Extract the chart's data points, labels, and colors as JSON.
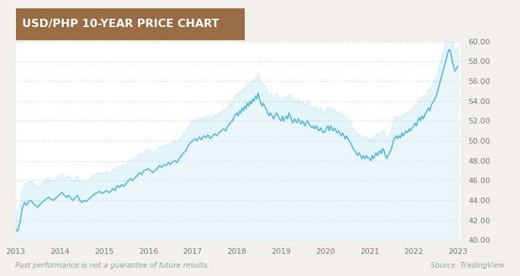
{
  "title": "USD/PHP 10-YEAR PRICE CHART",
  "title_bg_color": "#9b6b44",
  "title_text_color": "#ffffff",
  "fig_bg_color": "#f2f0ed",
  "plot_bg_color": "#ffffff",
  "line_color": "#4db8e8",
  "fill_color": "#c8e8f5",
  "grid_color": "#d0ccc8",
  "tick_color": "#777777",
  "footnote_left": "Past performance is not a guarantee of future results",
  "footnote_right": "Source: TradingView",
  "footnote_color": "#999999",
  "ylim": [
    40.0,
    60.0
  ],
  "yticks": [
    40.0,
    42.0,
    44.0,
    46.0,
    48.0,
    50.0,
    52.0,
    54.0,
    56.0,
    58.0,
    60.0
  ],
  "xtick_labels": [
    "2013",
    "2014",
    "2015",
    "2016",
    "2017",
    "2018",
    "2019",
    "2020",
    "2021",
    "2022",
    "2023"
  ],
  "data": [
    [
      2013.0,
      41.2
    ],
    [
      2013.02,
      41.0
    ],
    [
      2013.05,
      40.9
    ],
    [
      2013.08,
      41.5
    ],
    [
      2013.1,
      41.8
    ],
    [
      2013.15,
      43.2
    ],
    [
      2013.2,
      43.8
    ],
    [
      2013.25,
      43.5
    ],
    [
      2013.3,
      43.9
    ],
    [
      2013.35,
      44.0
    ],
    [
      2013.4,
      43.7
    ],
    [
      2013.45,
      43.5
    ],
    [
      2013.5,
      43.3
    ],
    [
      2013.55,
      43.6
    ],
    [
      2013.6,
      43.8
    ],
    [
      2013.65,
      44.0
    ],
    [
      2013.7,
      44.2
    ],
    [
      2013.75,
      44.3
    ],
    [
      2013.8,
      44.1
    ],
    [
      2013.85,
      44.0
    ],
    [
      2013.9,
      44.2
    ],
    [
      2013.95,
      44.4
    ],
    [
      2014.0,
      44.6
    ],
    [
      2014.05,
      44.8
    ],
    [
      2014.1,
      44.5
    ],
    [
      2014.15,
      44.3
    ],
    [
      2014.2,
      44.5
    ],
    [
      2014.25,
      44.2
    ],
    [
      2014.3,
      44.0
    ],
    [
      2014.35,
      44.3
    ],
    [
      2014.4,
      44.5
    ],
    [
      2014.45,
      44.0
    ],
    [
      2014.5,
      43.8
    ],
    [
      2014.55,
      44.0
    ],
    [
      2014.6,
      43.9
    ],
    [
      2014.65,
      44.1
    ],
    [
      2014.7,
      44.3
    ],
    [
      2014.75,
      44.5
    ],
    [
      2014.8,
      44.7
    ],
    [
      2014.85,
      44.8
    ],
    [
      2014.9,
      44.9
    ],
    [
      2014.95,
      44.7
    ],
    [
      2015.0,
      44.8
    ],
    [
      2015.05,
      45.0
    ],
    [
      2015.1,
      44.8
    ],
    [
      2015.15,
      44.9
    ],
    [
      2015.2,
      45.2
    ],
    [
      2015.25,
      45.0
    ],
    [
      2015.3,
      45.5
    ],
    [
      2015.35,
      45.3
    ],
    [
      2015.4,
      45.6
    ],
    [
      2015.45,
      45.4
    ],
    [
      2015.5,
      45.7
    ],
    [
      2015.55,
      46.0
    ],
    [
      2015.6,
      46.2
    ],
    [
      2015.65,
      46.0
    ],
    [
      2015.7,
      46.3
    ],
    [
      2015.75,
      46.5
    ],
    [
      2015.8,
      46.8
    ],
    [
      2015.85,
      46.6
    ],
    [
      2015.9,
      47.0
    ],
    [
      2015.95,
      47.1
    ],
    [
      2016.0,
      47.2
    ],
    [
      2016.05,
      47.0
    ],
    [
      2016.1,
      46.8
    ],
    [
      2016.15,
      47.0
    ],
    [
      2016.2,
      47.2
    ],
    [
      2016.25,
      47.5
    ],
    [
      2016.3,
      47.3
    ],
    [
      2016.35,
      47.6
    ],
    [
      2016.4,
      47.5
    ],
    [
      2016.45,
      47.8
    ],
    [
      2016.5,
      47.6
    ],
    [
      2016.55,
      47.9
    ],
    [
      2016.6,
      48.0
    ],
    [
      2016.65,
      47.8
    ],
    [
      2016.7,
      48.2
    ],
    [
      2016.75,
      48.5
    ],
    [
      2016.8,
      48.8
    ],
    [
      2016.85,
      49.0
    ],
    [
      2016.9,
      49.5
    ],
    [
      2016.95,
      49.8
    ],
    [
      2017.0,
      50.0
    ],
    [
      2017.05,
      50.2
    ],
    [
      2017.1,
      50.0
    ],
    [
      2017.15,
      50.4
    ],
    [
      2017.2,
      50.1
    ],
    [
      2017.25,
      50.5
    ],
    [
      2017.3,
      50.3
    ],
    [
      2017.35,
      50.6
    ],
    [
      2017.4,
      50.2
    ],
    [
      2017.45,
      50.5
    ],
    [
      2017.5,
      50.7
    ],
    [
      2017.55,
      50.5
    ],
    [
      2017.6,
      50.8
    ],
    [
      2017.65,
      51.0
    ],
    [
      2017.7,
      51.2
    ],
    [
      2017.75,
      51.0
    ],
    [
      2017.8,
      51.5
    ],
    [
      2017.85,
      51.8
    ],
    [
      2017.9,
      52.0
    ],
    [
      2017.95,
      52.5
    ],
    [
      2018.0,
      52.8
    ],
    [
      2018.03,
      52.5
    ],
    [
      2018.06,
      53.0
    ],
    [
      2018.09,
      52.8
    ],
    [
      2018.12,
      53.3
    ],
    [
      2018.15,
      53.0
    ],
    [
      2018.18,
      53.5
    ],
    [
      2018.21,
      53.2
    ],
    [
      2018.24,
      53.8
    ],
    [
      2018.27,
      53.5
    ],
    [
      2018.3,
      54.0
    ],
    [
      2018.33,
      53.7
    ],
    [
      2018.36,
      54.2
    ],
    [
      2018.39,
      54.0
    ],
    [
      2018.42,
      54.5
    ],
    [
      2018.45,
      54.2
    ],
    [
      2018.48,
      54.8
    ],
    [
      2018.51,
      54.3
    ],
    [
      2018.54,
      53.8
    ],
    [
      2018.57,
      53.5
    ],
    [
      2018.6,
      53.8
    ],
    [
      2018.63,
      53.5
    ],
    [
      2018.66,
      53.2
    ],
    [
      2018.7,
      52.8
    ],
    [
      2018.73,
      52.5
    ],
    [
      2018.76,
      52.8
    ],
    [
      2018.8,
      52.5
    ],
    [
      2018.83,
      52.2
    ],
    [
      2018.86,
      52.5
    ],
    [
      2018.9,
      52.8
    ],
    [
      2018.93,
      52.5
    ],
    [
      2018.96,
      52.2
    ],
    [
      2019.0,
      52.0
    ],
    [
      2019.03,
      52.5
    ],
    [
      2019.06,
      52.0
    ],
    [
      2019.09,
      52.3
    ],
    [
      2019.12,
      52.5
    ],
    [
      2019.15,
      52.2
    ],
    [
      2019.18,
      52.8
    ],
    [
      2019.21,
      52.5
    ],
    [
      2019.24,
      52.0
    ],
    [
      2019.27,
      51.8
    ],
    [
      2019.3,
      52.2
    ],
    [
      2019.33,
      52.0
    ],
    [
      2019.36,
      51.8
    ],
    [
      2019.39,
      52.2
    ],
    [
      2019.42,
      52.0
    ],
    [
      2019.45,
      51.7
    ],
    [
      2019.48,
      52.0
    ],
    [
      2019.51,
      51.8
    ],
    [
      2019.54,
      51.5
    ],
    [
      2019.57,
      51.8
    ],
    [
      2019.6,
      52.0
    ],
    [
      2019.63,
      51.7
    ],
    [
      2019.66,
      51.5
    ],
    [
      2019.7,
      51.3
    ],
    [
      2019.73,
      51.5
    ],
    [
      2019.76,
      51.2
    ],
    [
      2019.8,
      51.5
    ],
    [
      2019.83,
      51.2
    ],
    [
      2019.86,
      51.0
    ],
    [
      2019.9,
      51.3
    ],
    [
      2019.93,
      51.0
    ],
    [
      2019.96,
      50.8
    ],
    [
      2020.0,
      51.0
    ],
    [
      2020.03,
      51.3
    ],
    [
      2020.06,
      51.5
    ],
    [
      2020.09,
      51.0
    ],
    [
      2020.12,
      51.5
    ],
    [
      2020.15,
      51.2
    ],
    [
      2020.18,
      51.0
    ],
    [
      2020.21,
      51.3
    ],
    [
      2020.24,
      51.0
    ],
    [
      2020.27,
      50.8
    ],
    [
      2020.3,
      51.0
    ],
    [
      2020.33,
      50.7
    ],
    [
      2020.36,
      50.5
    ],
    [
      2020.39,
      50.8
    ],
    [
      2020.42,
      50.5
    ],
    [
      2020.45,
      50.2
    ],
    [
      2020.48,
      50.5
    ],
    [
      2020.51,
      50.2
    ],
    [
      2020.54,
      50.0
    ],
    [
      2020.57,
      49.8
    ],
    [
      2020.6,
      49.5
    ],
    [
      2020.63,
      49.2
    ],
    [
      2020.66,
      49.0
    ],
    [
      2020.7,
      48.8
    ],
    [
      2020.73,
      48.5
    ],
    [
      2020.76,
      48.8
    ],
    [
      2020.8,
      48.5
    ],
    [
      2020.83,
      48.2
    ],
    [
      2020.86,
      48.5
    ],
    [
      2020.9,
      48.2
    ],
    [
      2020.93,
      48.5
    ],
    [
      2020.96,
      48.3
    ],
    [
      2021.0,
      48.2
    ],
    [
      2021.03,
      48.0
    ],
    [
      2021.06,
      48.5
    ],
    [
      2021.09,
      48.2
    ],
    [
      2021.12,
      48.5
    ],
    [
      2021.15,
      48.8
    ],
    [
      2021.18,
      48.5
    ],
    [
      2021.21,
      48.8
    ],
    [
      2021.24,
      49.0
    ],
    [
      2021.27,
      48.7
    ],
    [
      2021.3,
      49.2
    ],
    [
      2021.33,
      49.0
    ],
    [
      2021.36,
      48.5
    ],
    [
      2021.39,
      48.2
    ],
    [
      2021.42,
      48.5
    ],
    [
      2021.45,
      48.8
    ],
    [
      2021.48,
      49.0
    ],
    [
      2021.51,
      49.5
    ],
    [
      2021.54,
      50.0
    ],
    [
      2021.57,
      50.3
    ],
    [
      2021.6,
      50.5
    ],
    [
      2021.63,
      50.2
    ],
    [
      2021.66,
      50.5
    ],
    [
      2021.7,
      50.3
    ],
    [
      2021.73,
      50.8
    ],
    [
      2021.76,
      50.5
    ],
    [
      2021.8,
      50.8
    ],
    [
      2021.83,
      51.0
    ],
    [
      2021.86,
      50.8
    ],
    [
      2021.9,
      51.2
    ],
    [
      2021.93,
      51.0
    ],
    [
      2021.96,
      51.3
    ],
    [
      2022.0,
      51.5
    ],
    [
      2022.03,
      51.8
    ],
    [
      2022.06,
      51.5
    ],
    [
      2022.09,
      52.0
    ],
    [
      2022.12,
      52.3
    ],
    [
      2022.15,
      52.0
    ],
    [
      2022.18,
      52.5
    ],
    [
      2022.21,
      52.2
    ],
    [
      2022.24,
      52.5
    ],
    [
      2022.27,
      52.8
    ],
    [
      2022.3,
      53.0
    ],
    [
      2022.33,
      53.3
    ],
    [
      2022.36,
      53.0
    ],
    [
      2022.39,
      53.5
    ],
    [
      2022.42,
      53.8
    ],
    [
      2022.45,
      54.0
    ],
    [
      2022.48,
      54.3
    ],
    [
      2022.51,
      54.5
    ],
    [
      2022.54,
      55.0
    ],
    [
      2022.57,
      55.5
    ],
    [
      2022.6,
      56.0
    ],
    [
      2022.63,
      56.5
    ],
    [
      2022.66,
      57.0
    ],
    [
      2022.69,
      57.5
    ],
    [
      2022.72,
      58.0
    ],
    [
      2022.75,
      58.5
    ],
    [
      2022.78,
      59.0
    ],
    [
      2022.81,
      59.2
    ],
    [
      2022.84,
      58.8
    ],
    [
      2022.87,
      58.0
    ],
    [
      2022.9,
      57.5
    ],
    [
      2022.93,
      57.0
    ],
    [
      2022.96,
      57.2
    ],
    [
      2022.99,
      57.5
    ],
    [
      2023.0,
      57.5
    ]
  ]
}
